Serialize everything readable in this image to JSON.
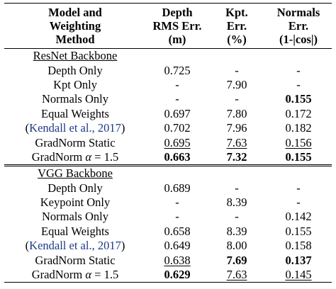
{
  "table": {
    "header": [
      [
        "Model and",
        "Weighting",
        "Method"
      ],
      [
        "Depth",
        "RMS Err.",
        "(m)"
      ],
      [
        "Kpt.",
        "Err.",
        "(%)"
      ],
      [
        "Normals",
        "Err.",
        "(1-|cos|)"
      ]
    ],
    "sections": [
      {
        "title": "ResNet Backbone",
        "rows": [
          {
            "method": "Depth Only",
            "cells": [
              "0.725",
              "-",
              "-"
            ]
          },
          {
            "method": "Kpt Only",
            "cells": [
              "-",
              "7.90",
              "-"
            ]
          },
          {
            "method": "Normals Only",
            "cells": [
              "-",
              "-",
              {
                "text": "0.155",
                "style": "bold"
              }
            ]
          },
          {
            "method": "Equal Weights",
            "cells": [
              "0.697",
              "7.80",
              "0.172"
            ]
          },
          {
            "method": [
              {
                "text": "("
              },
              {
                "text": "Kendall et al., 2017",
                "style": "cite"
              },
              {
                "text": ")"
              }
            ],
            "cells": [
              "0.702",
              "7.96",
              "0.182"
            ]
          },
          {
            "method": "GradNorm Static",
            "cells": [
              {
                "text": "0.695",
                "style": "underline"
              },
              {
                "text": "7.63",
                "style": "underline"
              },
              {
                "text": "0.156",
                "style": "underline"
              }
            ]
          },
          {
            "method": [
              {
                "text": "GradNorm "
              },
              {
                "text": "α",
                "style": "math"
              },
              {
                "text": " = 1.5"
              }
            ],
            "cells": [
              {
                "text": "0.663",
                "style": "bold"
              },
              {
                "text": "7.32",
                "style": "bold"
              },
              {
                "text": "0.155",
                "style": "bold"
              }
            ]
          }
        ]
      },
      {
        "title": "VGG Backbone",
        "rows": [
          {
            "method": "Depth Only",
            "cells": [
              "0.689",
              "-",
              "-"
            ]
          },
          {
            "method": "Keypoint Only",
            "cells": [
              "-",
              "8.39",
              "-"
            ]
          },
          {
            "method": "Normals Only",
            "cells": [
              "-",
              "-",
              "0.142"
            ]
          },
          {
            "method": "Equal Weights",
            "cells": [
              "0.658",
              "8.39",
              "0.155"
            ]
          },
          {
            "method": [
              {
                "text": "("
              },
              {
                "text": "Kendall et al., 2017",
                "style": "cite"
              },
              {
                "text": ")"
              }
            ],
            "cells": [
              "0.649",
              "8.00",
              "0.158"
            ]
          },
          {
            "method": "GradNorm Static",
            "cells": [
              {
                "text": "0.638",
                "style": "underline"
              },
              {
                "text": "7.69",
                "style": "bold"
              },
              {
                "text": "0.137",
                "style": "bold"
              }
            ]
          },
          {
            "method": [
              {
                "text": "GradNorm "
              },
              {
                "text": "α",
                "style": "math"
              },
              {
                "text": " = 1.5"
              }
            ],
            "cells": [
              {
                "text": "0.629",
                "style": "bold"
              },
              {
                "text": "7.63",
                "style": "underline"
              },
              {
                "text": "0.145",
                "style": "underline"
              }
            ]
          }
        ]
      }
    ]
  }
}
